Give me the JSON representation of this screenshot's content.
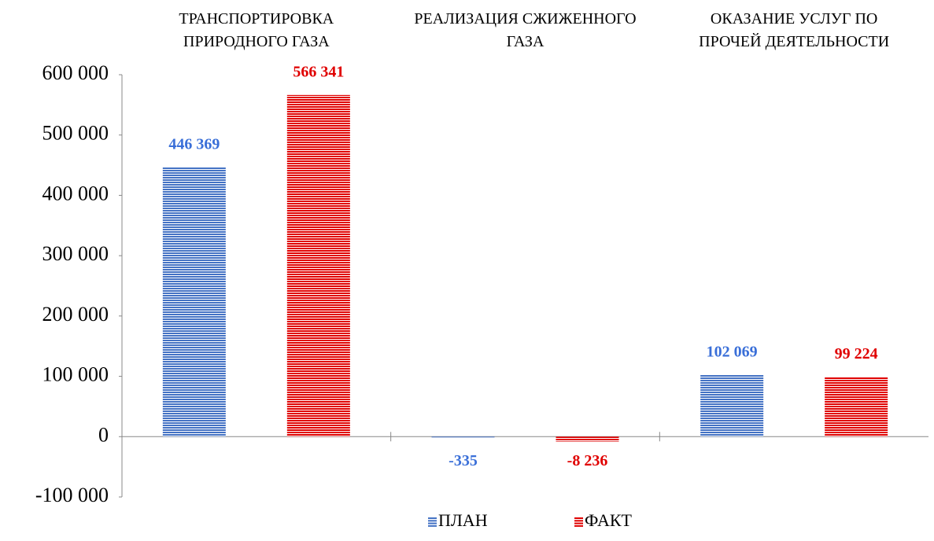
{
  "chart_data": {
    "type": "bar",
    "categories": [
      "ТРАНСПОРТИРОВКА ПРИРОДНОГО ГАЗА",
      "РЕАЛИЗАЦИЯ СЖИЖЕННОГО ГАЗА",
      "ОКАЗАНИЕ УСЛУГ ПО ПРОЧЕЙ ДЕЯТЕЛЬНОСТИ"
    ],
    "series": [
      {
        "name": "ПЛАН",
        "color": "#4472c4",
        "label_color": "#3a6fd8",
        "values": [
          446369,
          -335,
          102069
        ],
        "value_labels": [
          "446 369",
          "-335",
          "102 069"
        ]
      },
      {
        "name": "ФАКТ",
        "color": "#e00000",
        "label_color": "#e00000",
        "values": [
          566341,
          -8236,
          99224
        ],
        "value_labels": [
          "566 341",
          "-8 236",
          "99 224"
        ]
      }
    ],
    "ylim": [
      -100000,
      600000
    ],
    "yticks": [
      {
        "value": -100000,
        "label": "-100 000"
      },
      0,
      {
        "value": 100000,
        "label": "100 000"
      },
      {
        "value": 200000,
        "label": "200 000"
      },
      {
        "value": 300000,
        "label": "300 000"
      },
      {
        "value": 400000,
        "label": "400 000"
      },
      {
        "value": 500000,
        "label": "500 000"
      },
      {
        "value": 600000,
        "label": "600 000"
      }
    ],
    "legend": "bottom"
  }
}
